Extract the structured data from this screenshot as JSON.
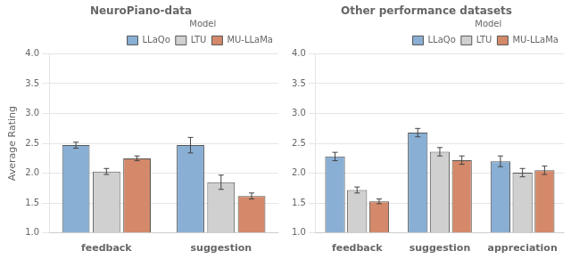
{
  "chart_data": [
    {
      "type": "bar",
      "title": "NeuroPiano-data",
      "ylabel": "Average Rating",
      "legend_title": "Model",
      "categories": [
        "feedback",
        "suggestion"
      ],
      "series": [
        {
          "name": "LLaQo",
          "color": "#8aafd4",
          "values": [
            2.47,
            2.47
          ],
          "errors": [
            0.05,
            0.13
          ]
        },
        {
          "name": "LTU",
          "color": "#d0d0d0",
          "values": [
            2.03,
            1.85
          ],
          "errors": [
            0.05,
            0.12
          ]
        },
        {
          "name": "MU-LLaMa",
          "color": "#d4896a",
          "values": [
            2.25,
            1.62
          ],
          "errors": [
            0.04,
            0.05
          ]
        }
      ],
      "ylim": [
        1.0,
        4.0
      ],
      "yticks": [
        {
          "value": 1.0,
          "label": "1.0"
        },
        1.5,
        {
          "value": 2.0,
          "label": "2.0"
        },
        2.5,
        {
          "value": 3.0,
          "label": "3.0"
        },
        3.5,
        {
          "value": 4.0,
          "label": "4.0"
        }
      ],
      "grid": true,
      "legend": "upper right"
    },
    {
      "type": "bar",
      "title": "Other performance datasets",
      "legend_title": "Model",
      "categories": [
        "feedback",
        "suggestion",
        "appreciation"
      ],
      "series": [
        {
          "name": "LLaQo",
          "color": "#8aafd4",
          "values": [
            2.28,
            2.68,
            2.2
          ],
          "errors": [
            0.07,
            0.07,
            0.09
          ]
        },
        {
          "name": "LTU",
          "color": "#d0d0d0",
          "values": [
            1.72,
            2.36,
            2.01
          ],
          "errors": [
            0.05,
            0.07,
            0.07
          ]
        },
        {
          "name": "MU-LLaMa",
          "color": "#d4896a",
          "values": [
            1.53,
            2.22,
            2.05
          ],
          "errors": [
            0.04,
            0.07,
            0.07
          ]
        }
      ],
      "ylim": [
        1.0,
        4.0
      ],
      "yticks": [
        {
          "value": 1.0,
          "label": "1.0"
        },
        1.5,
        {
          "value": 2.0,
          "label": "2.0"
        },
        2.5,
        {
          "value": 3.0,
          "label": "3.0"
        },
        3.5,
        {
          "value": 4.0,
          "label": "4.0"
        }
      ],
      "grid": true,
      "legend": "upper right"
    }
  ]
}
